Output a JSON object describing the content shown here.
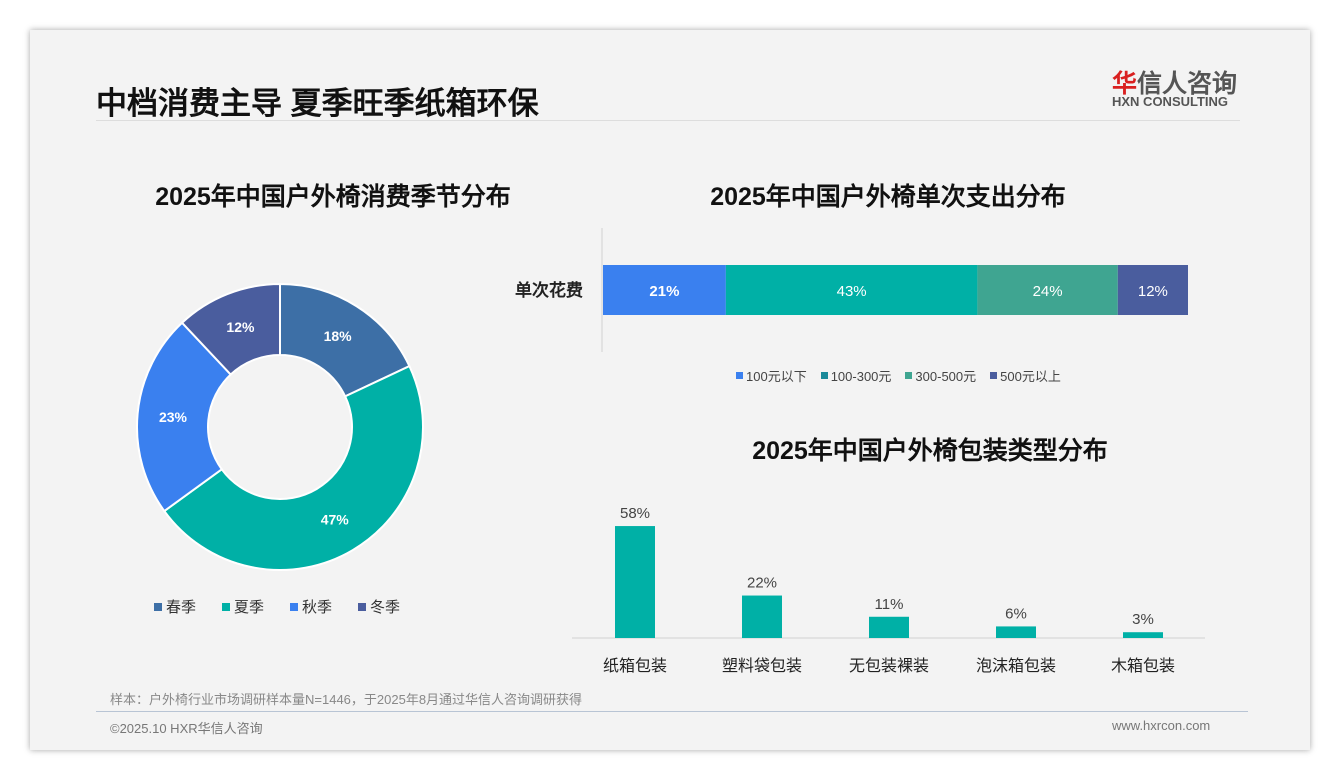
{
  "header": {
    "title": "中档消费主导 夏季旺季纸箱环保",
    "logo_cn_red": "华",
    "logo_cn": "信人咨询",
    "logo_en": "HXN CONSULTING"
  },
  "footer": {
    "note": "样本：户外椅行业市场调研样本量N=1446，于2025年8月通过华信人咨询调研获得",
    "copyright": "©2025.10 HXR华信人咨询",
    "website": "www.hxrcon.com"
  },
  "chart_data": [
    {
      "type": "pie",
      "title": "2025年中国户外椅消费季节分布",
      "donut": true,
      "categories": [
        "春季",
        "夏季",
        "秋季",
        "冬季"
      ],
      "values": [
        18,
        47,
        23,
        12
      ],
      "labels": [
        "18%",
        "47%",
        "23%",
        "12%"
      ],
      "colors": [
        "#3d6fa6",
        "#00b0a6",
        "#3a80ef",
        "#4a5d9e"
      ],
      "legend": "bottom"
    },
    {
      "type": "bar",
      "orientation": "horizontal",
      "stacked": true,
      "title": "2025年中国户外椅单次支出分布",
      "categories": [
        "单次花费"
      ],
      "series": [
        {
          "name": "100元以下",
          "values": [
            21
          ],
          "label": "21%",
          "color": "#3a80ef"
        },
        {
          "name": "100-300元",
          "values": [
            43
          ],
          "label": "43%",
          "color": "#00b0a6"
        },
        {
          "name": "300-500元",
          "values": [
            24
          ],
          "label": "24%",
          "color": "#3fa591"
        },
        {
          "name": "500元以上",
          "values": [
            12
          ],
          "label": "12%",
          "color": "#4a5d9e"
        }
      ],
      "legend_colors": [
        "#3a80ef",
        "#1a8a9a",
        "#3fa591",
        "#4a5d9e"
      ],
      "legend": "bottom"
    },
    {
      "type": "bar",
      "title": "2025年中国户外椅包装类型分布",
      "categories": [
        "纸箱包装",
        "塑料袋包装",
        "无包装裸装",
        "泡沫箱包装",
        "木箱包装"
      ],
      "values": [
        58,
        22,
        11,
        6,
        3
      ],
      "labels": [
        "58%",
        "22%",
        "11%",
        "6%",
        "3%"
      ],
      "color": "#00b0a6",
      "ylim": [
        0,
        60
      ]
    }
  ]
}
